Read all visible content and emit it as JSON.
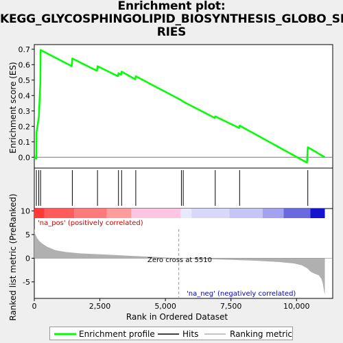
{
  "title_lines": [
    "Enrichment plot:",
    "KEGG_GLYCOSPHINGOLIPID_BIOSYNTHESIS_GLOBO_SE",
    "RIES"
  ],
  "colors": {
    "es_line": "#00ff00",
    "hits": "#000000",
    "metric_fill": "#b0b0b0",
    "zero_cross": "#999999",
    "pos_label": "#cc0000",
    "neg_label": "#0000cc"
  },
  "legend": {
    "enrichment_profile": "Enrichment profile",
    "hits": "Hits",
    "ranking_metric": "Ranking metric scores"
  },
  "chart_data": {
    "type": "line",
    "top_panel": {
      "ylabel": "Enrichment score (ES)",
      "ylim": [
        -0.07,
        0.73
      ],
      "yticks": [
        0.0,
        0.1,
        0.2,
        0.3,
        0.4,
        0.5,
        0.6,
        0.7
      ],
      "ytick_labels": [
        "0.0",
        "0.1",
        "0.2",
        "0.3",
        "0.4",
        "0.5",
        "0.6",
        "0.7"
      ],
      "es_profile": {
        "x": [
          0,
          20,
          80,
          85,
          170,
          175,
          230,
          240,
          1430,
          1450,
          2390,
          2410,
          3190,
          3210,
          3310,
          3330,
          3850,
          3870,
          5600,
          5680,
          6880,
          6900,
          7810,
          7830,
          10400,
          10430,
          11080
        ],
        "y": [
          0.0,
          -0.005,
          -0.01,
          0.16,
          0.26,
          0.27,
          0.48,
          0.695,
          0.59,
          0.64,
          0.56,
          0.59,
          0.525,
          0.545,
          0.535,
          0.555,
          0.505,
          0.525,
          0.37,
          0.36,
          0.255,
          0.265,
          0.19,
          0.205,
          -0.035,
          0.065,
          0.0
        ]
      }
    },
    "hits_positions": [
      80,
      170,
      240,
      1450,
      2410,
      3210,
      3330,
      3870,
      5610,
      5680,
      6900,
      7830,
      10430
    ],
    "bottom_panel": {
      "ylabel": "Ranked list metric (PreRanked)",
      "ylim": [
        -8.5,
        10.5
      ],
      "yticks": [
        -5,
        0,
        5,
        10
      ],
      "ytick_labels": [
        "-5",
        "0",
        "5",
        "10"
      ],
      "metric_profile": {
        "x": [
          0,
          30,
          100,
          200,
          300,
          500,
          800,
          1200,
          1800,
          2600,
          3500,
          4500,
          5510,
          6500,
          7500,
          8500,
          9300,
          9900,
          10200,
          10400,
          10550,
          10700,
          10850,
          10950,
          11000,
          11060,
          11080
        ],
        "y": [
          6.3,
          5.2,
          4.3,
          3.6,
          3.1,
          2.4,
          1.7,
          1.3,
          1.0,
          0.8,
          0.55,
          0.3,
          0.0,
          -0.2,
          -0.35,
          -0.55,
          -0.8,
          -1.1,
          -1.5,
          -2.1,
          -2.9,
          -3.3,
          -3.6,
          -4.4,
          -5.3,
          -7.3,
          -7.6
        ]
      },
      "pos_label": "'na_pos' (positively correlated)",
      "neg_label": "'na_neg' (negatively correlated)",
      "zero_cross_text": "Zero cross at 5510",
      "zero_cross_x": 5510
    },
    "x_axis": {
      "xlabel": "Rank in Ordered Dataset",
      "xlim": [
        0,
        11380
      ],
      "xticks": [
        0,
        2500,
        5000,
        7500,
        10000
      ],
      "xtick_labels": [
        "0",
        "2,500",
        "5,000",
        "7,500",
        "10,000"
      ]
    },
    "color_band": {
      "x_start": [
        0,
        380,
        1520,
        2760,
        3700,
        5590,
        6000,
        7440,
        8710,
        9510,
        10530
      ],
      "x_end": [
        380,
        1520,
        2760,
        3700,
        5590,
        6000,
        7440,
        8710,
        9510,
        10530,
        11080
      ],
      "colors": [
        "#ff3838",
        "#ff5c5c",
        "#ff7a7a",
        "#ff9c9c",
        "#ffc6e4",
        "#e8e8ff",
        "#d8d8fa",
        "#c6c6f6",
        "#a2a2ee",
        "#6a6ae0",
        "#1414cc"
      ]
    }
  }
}
